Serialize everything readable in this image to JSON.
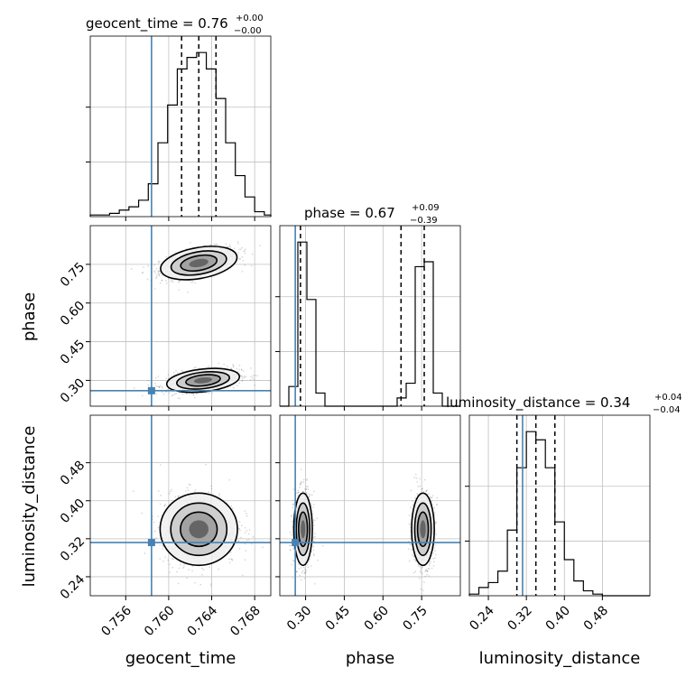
{
  "chart_data": {
    "type": "corner",
    "params": [
      "geocent_time",
      "phase",
      "luminosity_distance"
    ],
    "truths": {
      "geocent_time": 0.7584,
      "phase": 0.26,
      "luminosity_distance": 0.312
    },
    "colors": {
      "truth": "#4682b4",
      "hist": "#000000",
      "grid": "#c0c0c0"
    },
    "grid": true,
    "titles": [
      {
        "param": "geocent_time",
        "text": "geocent_time = 0.76",
        "plus": "+0.00",
        "minus": "−0.00"
      },
      {
        "param": "phase",
        "text": "phase = 0.67",
        "plus": "+0.09",
        "minus": "−0.39"
      },
      {
        "param": "luminosity_distance",
        "text": "luminosity_distance = 0.34",
        "plus": "+0.04",
        "minus": "−0.04"
      }
    ],
    "axis_labels": {
      "x": [
        "geocent_time",
        "phase",
        "luminosity_distance"
      ],
      "y": [
        "phase",
        "luminosity_distance"
      ]
    },
    "ranges": {
      "geocent_time": [
        0.7527,
        0.7695
      ],
      "phase": [
        0.2,
        0.9
      ],
      "luminosity_distance": [
        0.2,
        0.58
      ]
    },
    "ticks": {
      "geocent_time": {
        "values": [
          0.756,
          0.76,
          0.764,
          0.768
        ],
        "labels": [
          "0.756",
          "0.760",
          "0.764",
          "0.768"
        ]
      },
      "phase": {
        "values": [
          0.3,
          0.45,
          0.6,
          0.75
        ],
        "labels": [
          "0.30",
          "0.45",
          "0.60",
          "0.75"
        ]
      },
      "luminosity_distance": {
        "values": [
          0.24,
          0.32,
          0.4,
          0.48
        ],
        "labels": [
          "0.24",
          "0.32",
          "0.40",
          "0.48"
        ]
      }
    },
    "diagonal": {
      "geocent_time": {
        "bins": [
          0.7527,
          0.7536,
          0.7545,
          0.7554,
          0.7563,
          0.7572,
          0.7581,
          0.759,
          0.7599,
          0.7608,
          0.7617,
          0.7626,
          0.7635,
          0.7644,
          0.7653,
          0.7662,
          0.7671,
          0.768,
          0.7689,
          0.7695
        ],
        "counts": [
          1,
          1,
          2,
          4,
          6,
          10,
          20,
          45,
          68,
          90,
          97,
          100,
          90,
          72,
          45,
          25,
          12,
          3,
          1
        ],
        "quantiles": [
          0.7612,
          0.7628,
          0.7644
        ]
      },
      "phase": {
        "bins": [
          0.2,
          0.235,
          0.27,
          0.305,
          0.34,
          0.375,
          0.41,
          0.445,
          0.48,
          0.515,
          0.55,
          0.585,
          0.62,
          0.655,
          0.69,
          0.725,
          0.76,
          0.795,
          0.83,
          0.865,
          0.9
        ],
        "counts": [
          0,
          12,
          100,
          65,
          8,
          0,
          0,
          0,
          0,
          0,
          0,
          0,
          0,
          5,
          14,
          85,
          88,
          8,
          0,
          0
        ],
        "quantiles": [
          0.28,
          0.67,
          0.76
        ]
      },
      "luminosity_distance": {
        "bins": [
          0.2,
          0.22,
          0.24,
          0.26,
          0.28,
          0.3,
          0.32,
          0.34,
          0.36,
          0.38,
          0.4,
          0.42,
          0.44,
          0.46,
          0.48,
          0.5,
          0.52,
          0.54,
          0.56,
          0.58
        ],
        "counts": [
          1,
          5,
          8,
          15,
          40,
          78,
          100,
          95,
          78,
          45,
          22,
          9,
          3,
          1,
          0,
          0,
          0,
          0,
          0
        ],
        "quantiles": [
          0.3,
          0.34,
          0.38
        ]
      }
    },
    "pairs": [
      {
        "x": "geocent_time",
        "y": "phase",
        "modes": [
          {
            "cx": 0.7628,
            "cy": 0.755,
            "sx": 0.0018,
            "sy": 0.03,
            "rho": 0.5,
            "weight": 1
          },
          {
            "cx": 0.7632,
            "cy": 0.3,
            "sx": 0.0017,
            "sy": 0.022,
            "rho": 0.4,
            "weight": 1
          }
        ]
      },
      {
        "x": "geocent_time",
        "y": "luminosity_distance",
        "modes": [
          {
            "cx": 0.7628,
            "cy": 0.34,
            "sx": 0.0018,
            "sy": 0.038,
            "rho": 0.0,
            "weight": 1
          }
        ]
      },
      {
        "x": "phase",
        "y": "luminosity_distance",
        "modes": [
          {
            "cx": 0.29,
            "cy": 0.34,
            "sx": 0.018,
            "sy": 0.038,
            "rho": 0.0,
            "weight": 1
          },
          {
            "cx": 0.755,
            "cy": 0.34,
            "sx": 0.022,
            "sy": 0.038,
            "rho": 0.0,
            "weight": 1
          }
        ]
      }
    ]
  }
}
